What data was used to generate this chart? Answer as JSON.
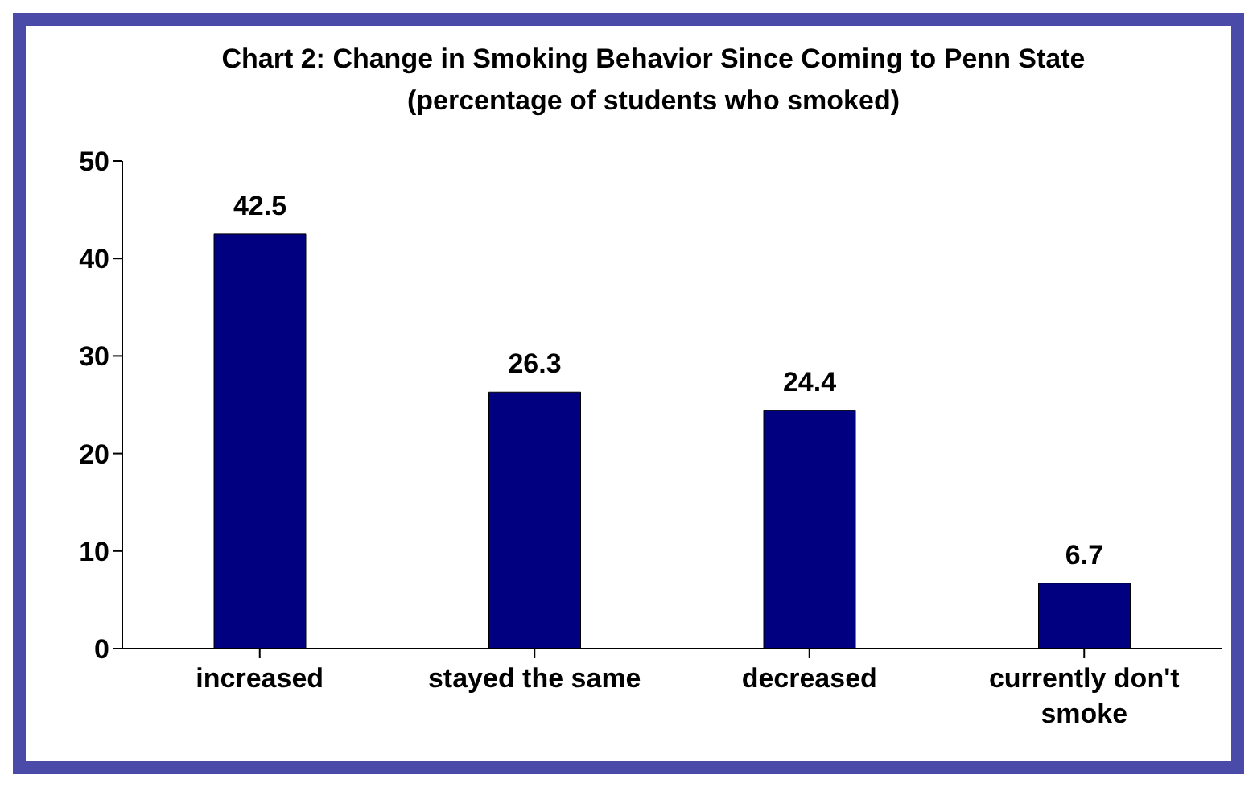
{
  "chart_data": {
    "type": "bar",
    "title": "Chart 2: Change in Smoking Behavior Since Coming to Penn State (percentage of students who smoked)",
    "categories": [
      "increased",
      "stayed the same",
      "decreased",
      "currently don't smoke"
    ],
    "values": [
      42.5,
      26.3,
      24.4,
      6.7
    ],
    "color": "#000080",
    "ylim": [
      0,
      50
    ],
    "yticks": [
      0,
      10,
      20,
      30,
      40,
      50
    ],
    "grid": false,
    "legend": false,
    "data_labels": true
  }
}
